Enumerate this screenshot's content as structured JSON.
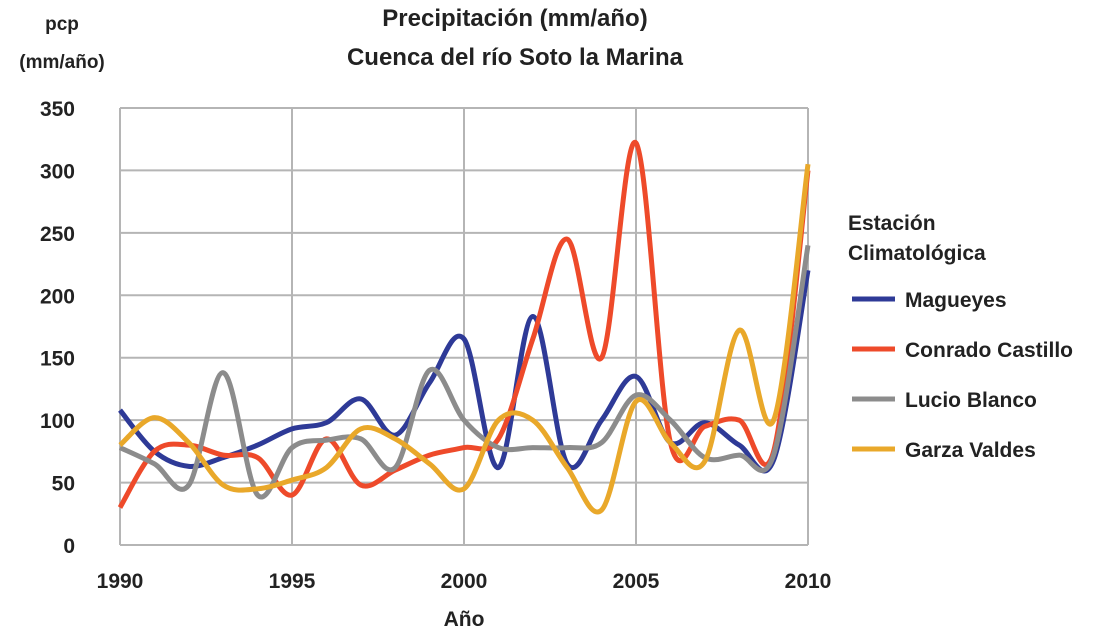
{
  "chart_data": {
    "type": "line",
    "title": "Precipitación (mm/año)",
    "subtitle": "Cuenca del río Soto la Marina",
    "ylabel_line1": "pcp",
    "ylabel_line2": "(mm/año)",
    "xlabel": "Año",
    "xlim": [
      1990,
      2010
    ],
    "ylim": [
      0,
      350
    ],
    "grid": true,
    "xticks": [
      1990,
      1995,
      2000,
      2005,
      2010
    ],
    "yticks": [
      0,
      50,
      100,
      150,
      200,
      250,
      300,
      350
    ],
    "legend_title_line1": "Estación",
    "legend_title_line2": "Climatológica",
    "legend_placement": "right",
    "x": [
      1990,
      1991,
      1992,
      1993,
      1994,
      1995,
      1996,
      1997,
      1998,
      1999,
      2000,
      2001,
      2002,
      2003,
      2004,
      2005,
      2006,
      2007,
      2008,
      2009,
      2010
    ],
    "series": [
      {
        "name": "Magueyes",
        "color": "#2e3a97",
        "values": [
          108,
          75,
          63,
          70,
          80,
          93,
          98,
          117,
          88,
          130,
          165,
          62,
          183,
          65,
          100,
          135,
          82,
          98,
          80,
          68,
          220
        ]
      },
      {
        "name": "Conrado Castillo",
        "color": "#ee4a2a",
        "values": [
          30,
          75,
          80,
          72,
          70,
          40,
          85,
          48,
          60,
          72,
          78,
          85,
          165,
          245,
          150,
          322,
          82,
          95,
          100,
          75,
          300
        ]
      },
      {
        "name": "Lucio Blanco",
        "color": "#8c8c8c",
        "values": [
          78,
          65,
          48,
          138,
          40,
          78,
          84,
          85,
          62,
          140,
          100,
          78,
          78,
          78,
          82,
          120,
          100,
          70,
          72,
          72,
          240
        ]
      },
      {
        "name": "Garza Valdes",
        "color": "#e9a82a",
        "values": [
          80,
          102,
          82,
          48,
          45,
          52,
          62,
          93,
          85,
          65,
          45,
          100,
          100,
          62,
          28,
          115,
          82,
          67,
          172,
          100,
          305
        ]
      }
    ]
  }
}
